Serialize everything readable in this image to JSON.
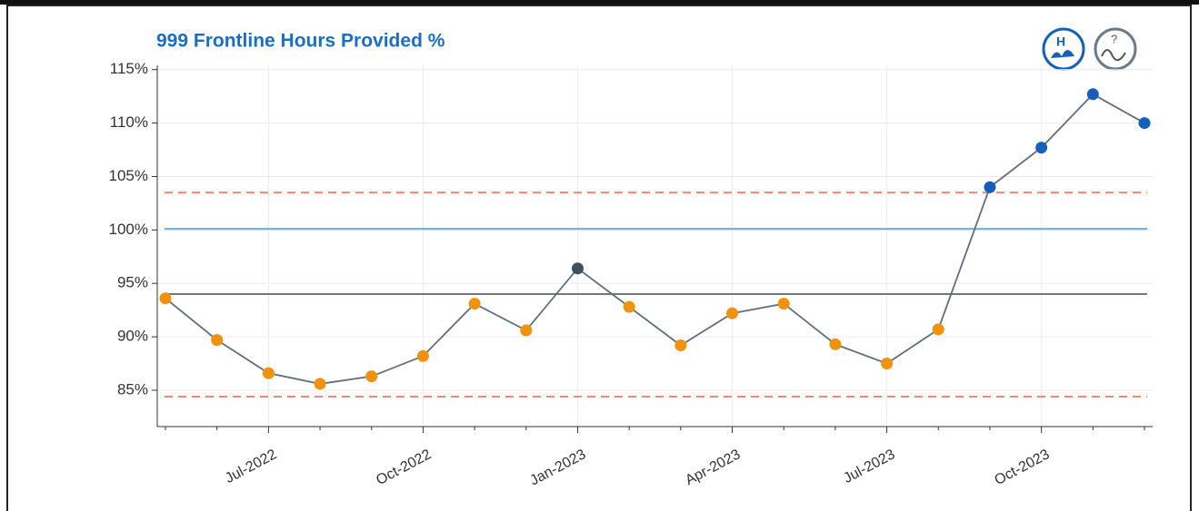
{
  "chart_data": {
    "type": "line",
    "title": "999 Frontline Hours Provided %",
    "categories": [
      null,
      null,
      "Jul-2022",
      null,
      null,
      "Oct-2022",
      null,
      null,
      "Jan-2023",
      null,
      null,
      "Apr-2023",
      null,
      null,
      "Jul-2023",
      null,
      null,
      "Oct-2023",
      null,
      null
    ],
    "values": [
      93.6,
      89.7,
      86.6,
      85.6,
      86.3,
      88.2,
      93.1,
      90.6,
      96.4,
      92.8,
      89.2,
      92.2,
      93.1,
      89.3,
      87.5,
      90.7,
      104.0,
      107.7,
      112.7,
      110.0
    ],
    "point_colors": [
      "#f0920c",
      "#f0920c",
      "#f0920c",
      "#f0920c",
      "#f0920c",
      "#f0920c",
      "#f0920c",
      "#f0920c",
      "#3f4f5f",
      "#f0920c",
      "#f0920c",
      "#f0920c",
      "#f0920c",
      "#f0920c",
      "#f0920c",
      "#f0920c",
      "#1560bd",
      "#1560bd",
      "#1560bd",
      "#1560bd"
    ],
    "line_color": "#5f6f7c",
    "reference_lines": [
      {
        "value": 103.5,
        "color": "#f08878",
        "dashed": true
      },
      {
        "value": 100.1,
        "color": "#6aaee8",
        "dashed": false
      },
      {
        "value": 94.0,
        "color": "#777777",
        "dashed": false
      },
      {
        "value": 84.4,
        "color": "#f08878",
        "dashed": true
      }
    ],
    "ylim": [
      81.6,
      115.4
    ],
    "yticks": [
      {
        "value": 85,
        "label": "85%"
      },
      {
        "value": 90,
        "label": "90%"
      },
      {
        "value": 95,
        "label": "95%"
      },
      {
        "value": 100,
        "label": "100%"
      },
      {
        "value": 105,
        "label": "105%"
      },
      {
        "value": 110,
        "label": "110%"
      },
      {
        "value": 115,
        "label": "115%"
      }
    ],
    "grid": true
  }
}
